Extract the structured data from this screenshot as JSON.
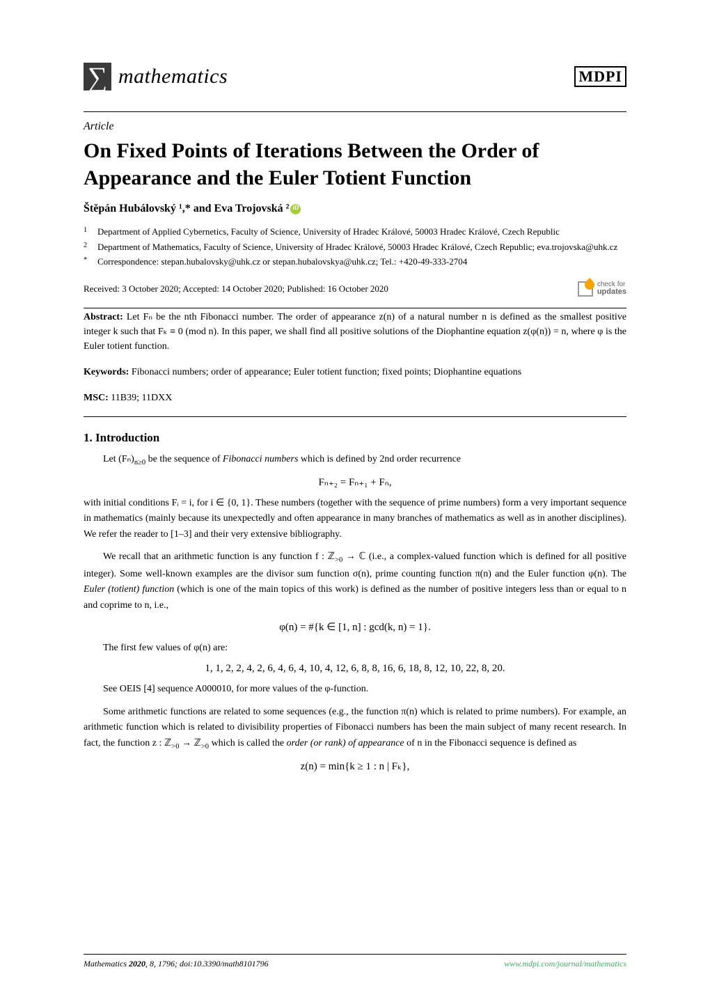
{
  "header": {
    "journal_name": "mathematics",
    "publisher": "MDPI",
    "article_type": "Article"
  },
  "title": "On Fixed Points of Iterations Between the Order of Appearance and the Euler Totient Function",
  "authors": "Štěpán Hubálovský ¹,* and Eva Trojovská ²",
  "affiliations": {
    "a1_sup": "1",
    "a1": "Department of Applied Cybernetics, Faculty of Science, University of Hradec Králové, 50003 Hradec Králové, Czech Republic",
    "a2_sup": "2",
    "a2": "Department of Mathematics, Faculty of Science, University of Hradec Králové, 50003 Hradec Králové, Czech Republic; eva.trojovska@uhk.cz",
    "corr_sup": "*",
    "corr": "Correspondence: stepan.hubalovsky@uhk.cz or stepan.hubalovskya@uhk.cz; Tel.: +420-49-333-2704"
  },
  "dates": "Received: 3 October 2020; Accepted: 14 October 2020; Published: 16 October 2020",
  "check": {
    "l1": "check for",
    "l2": "updates"
  },
  "abstract": {
    "label": "Abstract:",
    "text": " Let Fₙ be the nth Fibonacci number. The order of appearance z(n) of a natural number n is defined as the smallest positive integer k such that Fₖ ≡ 0 (mod n). In this paper, we shall find all positive solutions of the Diophantine equation z(φ(n)) = n, where φ is the Euler totient function."
  },
  "keywords": {
    "label": "Keywords:",
    "text": " Fibonacci numbers; order of appearance; Euler totient function; fixed points; Diophantine equations"
  },
  "msc": {
    "label": "MSC:",
    "text": " 11B39; 11DXX"
  },
  "sections": {
    "intro_title": "1. Introduction",
    "p1_a": "Let (Fₙ)",
    "p1_sub": "n≥0",
    "p1_b": " be the sequence of ",
    "p1_i": "Fibonacci numbers",
    "p1_c": " which is defined by 2nd order recurrence",
    "eq1": "Fₙ₊₂ = Fₙ₊₁ + Fₙ,",
    "p2": "with initial conditions Fᵢ = i, for i ∈ {0, 1}. These numbers (together with the sequence of prime numbers) form a very important sequence in mathematics (mainly because its unexpectedly and often appearance in many branches of mathematics as well as in another disciplines). We refer the reader to [1–3] and their very extensive bibliography.",
    "p3_a": "We recall that an arithmetic function is any function f : ℤ",
    "p3_sub1": ">0",
    "p3_b": " → ℂ (i.e., a complex-valued function which is defined for all positive integer). Some well-known examples are the divisor sum function σ(n), prime counting function π(n) and the Euler function φ(n). The ",
    "p3_i": "Euler (totient) function",
    "p3_c": " (which is one of the main topics of this work) is defined as the number of positive integers less than or equal to n and coprime to n, i.e.,",
    "eq2": "φ(n) = #{k ∈ [1, n] : gcd(k, n) = 1}.",
    "p4": "The first few values of φ(n) are:",
    "eq3": "1, 1, 2, 2, 4, 2, 6, 4, 6, 4, 10, 4, 12, 6, 8, 8, 16, 6, 18, 8, 12, 10, 22, 8, 20.",
    "p5": "See OEIS [4] sequence A000010, for more values of the φ-function.",
    "p6_a": "Some arithmetic functions are related to some sequences (e.g., the function π(n) which is related to prime numbers). For example, an arithmetic function which is related to divisibility properties of Fibonacci numbers has been the main subject of many recent research. In fact, the function z : ℤ",
    "p6_sub1": ">0",
    "p6_b": " → ℤ",
    "p6_sub2": ">0",
    "p6_c": " which is called the ",
    "p6_i": "order (or rank) of appearance",
    "p6_d": " of n in the Fibonacci sequence is defined as",
    "eq4": "z(n) = min{k ≥ 1 : n | Fₖ},"
  },
  "footer": {
    "left_a": "Mathematics ",
    "left_b": "2020",
    "left_c": ", ",
    "left_d": "8",
    "left_e": ", 1796; doi:10.3390/math8101796",
    "right": "www.mdpi.com/journal/mathematics"
  }
}
